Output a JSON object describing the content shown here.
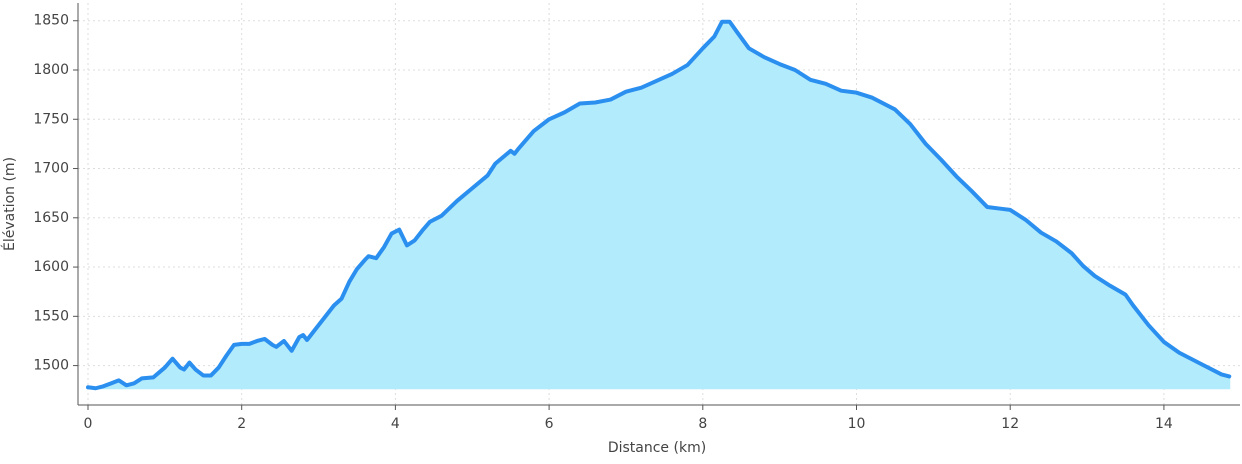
{
  "chart_data": {
    "type": "area",
    "xlabel": "Distance (km)",
    "ylabel": "Élévation (m)",
    "x": [
      0,
      0.1,
      0.2,
      0.3,
      0.4,
      0.5,
      0.6,
      0.7,
      0.85,
      1.0,
      1.1,
      1.2,
      1.25,
      1.32,
      1.4,
      1.5,
      1.6,
      1.7,
      1.8,
      1.9,
      2.0,
      2.1,
      2.2,
      2.3,
      2.4,
      2.45,
      2.55,
      2.65,
      2.75,
      2.8,
      2.85,
      2.95,
      3.1,
      3.2,
      3.3,
      3.4,
      3.5,
      3.6,
      3.65,
      3.75,
      3.85,
      3.95,
      4.05,
      4.1,
      4.15,
      4.25,
      4.35,
      4.45,
      4.6,
      4.8,
      5.0,
      5.2,
      5.3,
      5.5,
      5.55,
      5.6,
      5.8,
      6.0,
      6.2,
      6.4,
      6.6,
      6.8,
      7.0,
      7.2,
      7.4,
      7.6,
      7.8,
      8.0,
      8.15,
      8.25,
      8.35,
      8.45,
      8.6,
      8.8,
      9.0,
      9.2,
      9.4,
      9.6,
      9.8,
      10.0,
      10.2,
      10.5,
      10.7,
      10.9,
      11.1,
      11.3,
      11.5,
      11.7,
      11.9,
      12.0,
      12.2,
      12.4,
      12.6,
      12.8,
      12.95,
      13.1,
      13.3,
      13.5,
      13.6,
      13.8,
      14.0,
      14.2,
      14.5,
      14.75,
      14.85
    ],
    "values": [
      1478,
      1477,
      1479,
      1482,
      1485,
      1480,
      1482,
      1487,
      1488,
      1498,
      1507,
      1498,
      1496,
      1503,
      1496,
      1490,
      1490,
      1498,
      1510,
      1521,
      1522,
      1522,
      1525,
      1527,
      1521,
      1519,
      1525,
      1515,
      1529,
      1531,
      1526,
      1536,
      1551,
      1561,
      1568,
      1585,
      1598,
      1607,
      1611,
      1609,
      1620,
      1634,
      1638,
      1630,
      1622,
      1627,
      1637,
      1646,
      1652,
      1667,
      1680,
      1693,
      1705,
      1718,
      1715,
      1720,
      1738,
      1750,
      1757,
      1766,
      1767,
      1770,
      1778,
      1782,
      1789,
      1796,
      1805,
      1822,
      1834,
      1849,
      1849,
      1838,
      1822,
      1813,
      1806,
      1800,
      1790,
      1786,
      1779,
      1777,
      1772,
      1760,
      1745,
      1725,
      1709,
      1692,
      1677,
      1661,
      1659,
      1658,
      1648,
      1635,
      1626,
      1614,
      1601,
      1591,
      1581,
      1572,
      1561,
      1541,
      1524,
      1513,
      1501,
      1491,
      1489
    ],
    "color": "#2b8ff0",
    "fill_color": "#b2ebfb",
    "xlim": [
      -0.13,
      14.99
    ],
    "ylim": [
      1460,
      1868
    ],
    "xticks": [
      0,
      2,
      4,
      6,
      8,
      10,
      12,
      14
    ],
    "yticks": [
      1500,
      1550,
      1600,
      1650,
      1700,
      1750,
      1800,
      1850
    ],
    "grid": true
  }
}
